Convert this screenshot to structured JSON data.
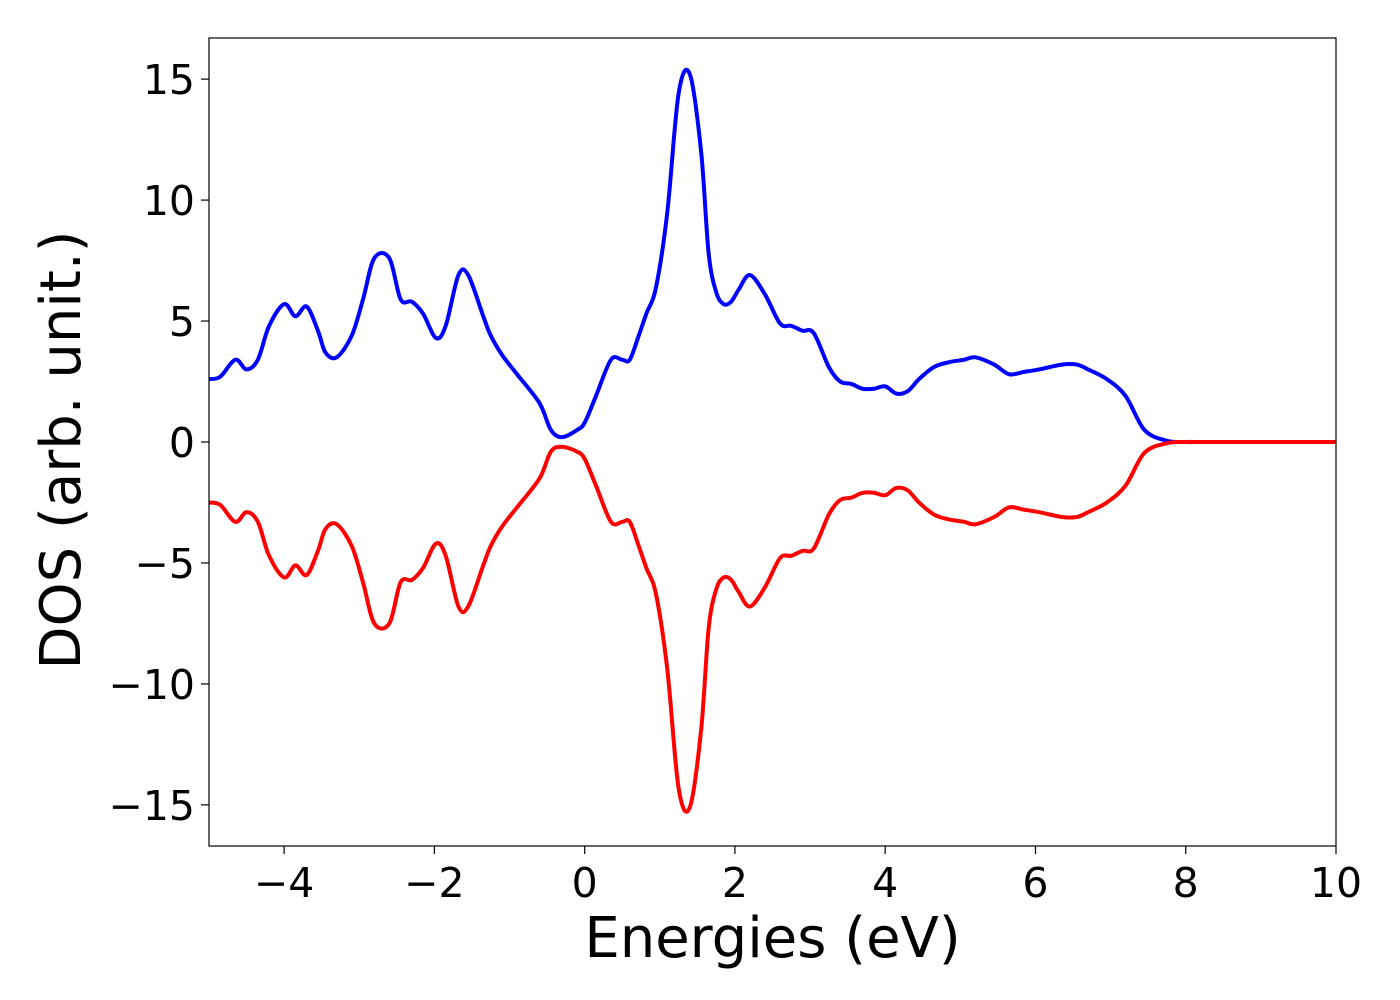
{
  "chart_data": {
    "type": "line",
    "title": "",
    "xlabel": "Energies (eV)",
    "ylabel": "DOS (arb. unit.)",
    "xlim": [
      -5,
      10
    ],
    "ylim": [
      -16.7,
      16.7
    ],
    "xticks": [
      -4,
      -2,
      0,
      2,
      4,
      6,
      8,
      10
    ],
    "xtick_labels": [
      "−4",
      "−2",
      "0",
      "2",
      "4",
      "6",
      "8",
      "10"
    ],
    "yticks": [
      -15,
      -10,
      -5,
      0,
      5,
      10,
      15
    ],
    "ytick_labels": [
      "−15",
      "−10",
      "−5",
      "0",
      "5",
      "10",
      "15"
    ],
    "grid": false,
    "legend": "none",
    "series": [
      {
        "color": "#0000ff",
        "x": [
          -5.0,
          -4.85,
          -4.65,
          -4.5,
          -4.35,
          -4.2,
          -4.0,
          -3.85,
          -3.7,
          -3.55,
          -3.45,
          -3.3,
          -3.1,
          -2.95,
          -2.8,
          -2.6,
          -2.45,
          -2.3,
          -2.15,
          -1.98,
          -1.85,
          -1.68,
          -1.55,
          -1.35,
          -1.25,
          -1.1,
          -0.9,
          -0.6,
          -0.45,
          -0.3,
          -0.1,
          0.0,
          0.15,
          0.35,
          0.5,
          0.6,
          0.72,
          0.82,
          0.95,
          1.1,
          1.25,
          1.4,
          1.55,
          1.65,
          1.75,
          1.85,
          1.95,
          2.05,
          2.2,
          2.4,
          2.6,
          2.75,
          2.9,
          3.05,
          3.25,
          3.4,
          3.55,
          3.7,
          3.85,
          4.0,
          4.15,
          4.3,
          4.45,
          4.65,
          4.85,
          5.05,
          5.2,
          5.45,
          5.65,
          5.85,
          6.05,
          6.35,
          6.55,
          6.7,
          6.95,
          7.2,
          7.45,
          7.75,
          8.0,
          8.2,
          8.5,
          9.0,
          9.5,
          10.0
        ],
        "y": [
          2.6,
          2.7,
          3.4,
          3.0,
          3.4,
          4.8,
          5.7,
          5.2,
          5.6,
          4.6,
          3.7,
          3.5,
          4.4,
          5.9,
          7.6,
          7.6,
          5.9,
          5.8,
          5.3,
          4.3,
          4.8,
          6.9,
          6.9,
          5.2,
          4.4,
          3.6,
          2.8,
          1.6,
          0.5,
          0.2,
          0.5,
          0.8,
          1.9,
          3.4,
          3.4,
          3.4,
          4.4,
          5.3,
          6.4,
          9.5,
          14.4,
          15.2,
          12.0,
          7.8,
          6.2,
          5.7,
          5.8,
          6.3,
          6.9,
          6.1,
          4.9,
          4.8,
          4.6,
          4.5,
          3.1,
          2.5,
          2.4,
          2.2,
          2.2,
          2.3,
          2.0,
          2.1,
          2.6,
          3.1,
          3.3,
          3.4,
          3.5,
          3.2,
          2.8,
          2.9,
          3.0,
          3.2,
          3.2,
          3.0,
          2.6,
          1.9,
          0.5,
          0.05,
          0.0,
          0.0,
          0.0,
          0.0,
          0.0,
          0.0
        ]
      },
      {
        "color": "#ff0000",
        "x": [
          -5.0,
          -4.85,
          -4.65,
          -4.5,
          -4.35,
          -4.2,
          -4.0,
          -3.85,
          -3.7,
          -3.55,
          -3.45,
          -3.3,
          -3.1,
          -2.95,
          -2.8,
          -2.6,
          -2.45,
          -2.3,
          -2.15,
          -1.98,
          -1.85,
          -1.68,
          -1.55,
          -1.35,
          -1.25,
          -1.1,
          -0.9,
          -0.6,
          -0.45,
          -0.3,
          -0.1,
          0.0,
          0.15,
          0.35,
          0.5,
          0.6,
          0.72,
          0.82,
          0.95,
          1.1,
          1.25,
          1.4,
          1.55,
          1.65,
          1.75,
          1.85,
          1.95,
          2.05,
          2.2,
          2.4,
          2.6,
          2.75,
          2.9,
          3.05,
          3.25,
          3.4,
          3.55,
          3.7,
          3.85,
          4.0,
          4.15,
          4.3,
          4.45,
          4.65,
          4.85,
          5.05,
          5.2,
          5.45,
          5.65,
          5.85,
          6.05,
          6.35,
          6.55,
          6.7,
          6.95,
          7.2,
          7.45,
          7.75,
          8.0,
          8.2,
          8.5,
          9.0,
          9.5,
          10.0
        ],
        "y": [
          -2.5,
          -2.6,
          -3.3,
          -2.9,
          -3.3,
          -4.7,
          -5.6,
          -5.1,
          -5.5,
          -4.5,
          -3.6,
          -3.4,
          -4.3,
          -5.8,
          -7.5,
          -7.5,
          -5.8,
          -5.7,
          -5.2,
          -4.2,
          -4.7,
          -6.8,
          -6.8,
          -5.1,
          -4.3,
          -3.5,
          -2.7,
          -1.5,
          -0.4,
          -0.2,
          -0.4,
          -0.7,
          -1.8,
          -3.3,
          -3.3,
          -3.3,
          -4.3,
          -5.2,
          -6.3,
          -9.4,
          -14.3,
          -15.1,
          -11.9,
          -7.7,
          -6.1,
          -5.6,
          -5.7,
          -6.2,
          -6.8,
          -6.0,
          -4.8,
          -4.7,
          -4.5,
          -4.4,
          -3.0,
          -2.4,
          -2.3,
          -2.1,
          -2.1,
          -2.2,
          -1.9,
          -2.0,
          -2.5,
          -3.0,
          -3.2,
          -3.3,
          -3.4,
          -3.1,
          -2.7,
          -2.8,
          -2.9,
          -3.1,
          -3.1,
          -2.9,
          -2.5,
          -1.8,
          -0.45,
          -0.05,
          0.0,
          0.0,
          0.0,
          0.0,
          0.0,
          0.0
        ]
      }
    ]
  }
}
